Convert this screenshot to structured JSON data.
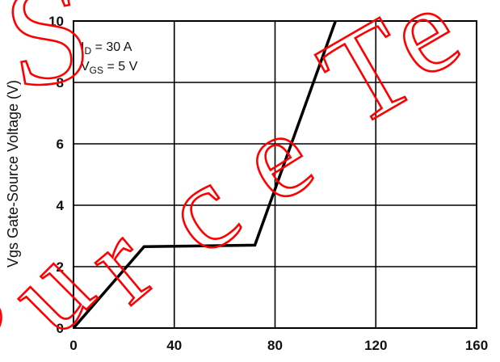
{
  "chart_data": {
    "type": "line",
    "ylabel": "Vgs Gate-Source Voltage (V)",
    "xlim": [
      0,
      160
    ],
    "ylim": [
      0,
      10
    ],
    "x_ticks": [
      "0",
      "40",
      "80",
      "120",
      "160"
    ],
    "y_ticks": [
      "0",
      "2",
      "4",
      "6",
      "8",
      "10"
    ],
    "grid": true,
    "annotations": {
      "line1": {
        "main": "I",
        "sub": "D",
        "rest": " = 30 A"
      },
      "line2": {
        "main": "V",
        "sub": "GS",
        "rest": " = 5 V"
      }
    },
    "series": [
      {
        "x": [
          0,
          28,
          72,
          104
        ],
        "y": [
          0,
          2.65,
          2.7,
          10
        ]
      }
    ],
    "colors": {
      "line": "#000000",
      "grid": "#000000",
      "watermark": "#ff0000"
    }
  },
  "watermark": "SourceTe"
}
